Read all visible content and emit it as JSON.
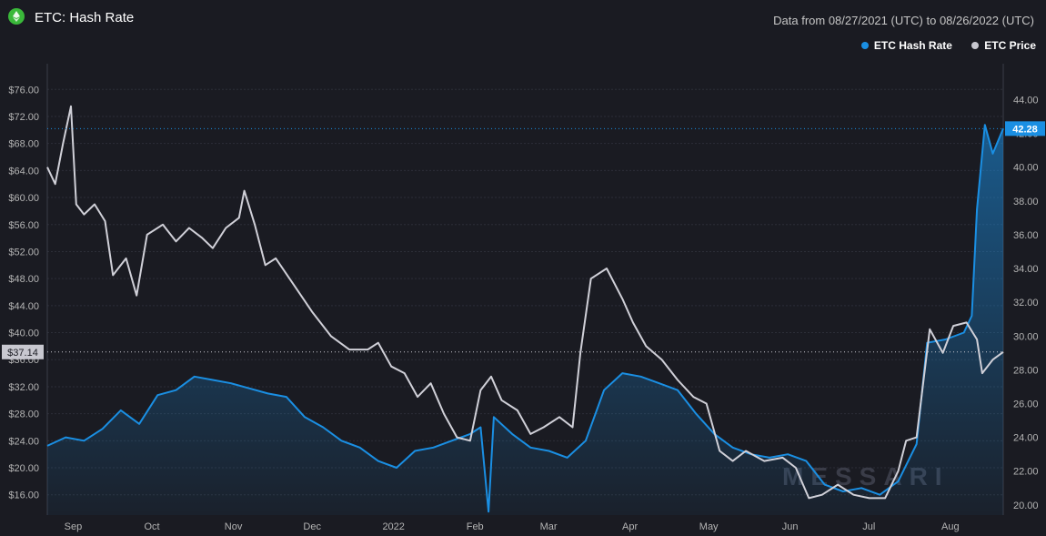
{
  "header": {
    "title": "ETC: Hash Rate",
    "date_range": "Data from 08/27/2021 (UTC) to 08/26/2022 (UTC)"
  },
  "watermark": "MESSARI",
  "colors": {
    "background": "#1a1b22",
    "hash_rate": "#1a8fe3",
    "price": "#d0d0d8",
    "grid": "#2c2e38",
    "logo": "#3ab83a"
  },
  "chart_data": {
    "type": "line",
    "title": "ETC: Hash Rate",
    "legend_position": "top-right",
    "grid": true,
    "x_ticks": [
      "Sep",
      "Oct",
      "Nov",
      "Dec",
      "2022",
      "Feb",
      "Mar",
      "Apr",
      "May",
      "Jun",
      "Jul",
      "Aug"
    ],
    "y_left": {
      "ticks": [
        "$16.00",
        "$20.00",
        "$24.00",
        "$28.00",
        "$32.00",
        "$36.00",
        "$40.00",
        "$44.00",
        "$48.00",
        "$52.00",
        "$56.00",
        "$60.00",
        "$64.00",
        "$68.00",
        "$72.00",
        "$76.00"
      ],
      "range": [
        13,
        79
      ]
    },
    "y_right": {
      "ticks": [
        "20.00",
        "22.00",
        "24.00",
        "26.00",
        "28.00",
        "30.00",
        "32.00",
        "34.00",
        "36.00",
        "38.00",
        "40.00",
        "42.00",
        "44.00"
      ],
      "range": [
        19.4,
        45.8
      ]
    },
    "current_value_labels": {
      "price": "$37.14",
      "hash_rate": "42.28"
    },
    "series": [
      {
        "name": "ETC Hash Rate",
        "axis": "right",
        "points": [
          [
            "2021-08-27",
            23.5
          ],
          [
            "2021-09-03",
            24.0
          ],
          [
            "2021-09-10",
            23.8
          ],
          [
            "2021-09-17",
            24.5
          ],
          [
            "2021-09-24",
            25.6
          ],
          [
            "2021-10-01",
            24.8
          ],
          [
            "2021-10-08",
            26.5
          ],
          [
            "2021-10-15",
            26.8
          ],
          [
            "2021-10-22",
            27.6
          ],
          [
            "2021-10-29",
            27.4
          ],
          [
            "2021-11-05",
            27.2
          ],
          [
            "2021-11-12",
            26.9
          ],
          [
            "2021-11-19",
            26.6
          ],
          [
            "2021-11-26",
            26.4
          ],
          [
            "2021-12-03",
            25.2
          ],
          [
            "2021-12-10",
            24.6
          ],
          [
            "2021-12-17",
            23.8
          ],
          [
            "2021-12-24",
            23.4
          ],
          [
            "2021-12-31",
            22.6
          ],
          [
            "2022-01-07",
            22.2
          ],
          [
            "2022-01-14",
            23.2
          ],
          [
            "2022-01-21",
            23.4
          ],
          [
            "2022-01-28",
            23.8
          ],
          [
            "2022-02-04",
            24.2
          ],
          [
            "2022-02-08",
            24.6
          ],
          [
            "2022-02-11",
            19.6
          ],
          [
            "2022-02-13",
            25.2
          ],
          [
            "2022-02-20",
            24.2
          ],
          [
            "2022-02-27",
            23.4
          ],
          [
            "2022-03-06",
            23.2
          ],
          [
            "2022-03-13",
            22.8
          ],
          [
            "2022-03-20",
            23.8
          ],
          [
            "2022-03-27",
            26.8
          ],
          [
            "2022-04-03",
            27.8
          ],
          [
            "2022-04-10",
            27.6
          ],
          [
            "2022-04-17",
            27.2
          ],
          [
            "2022-04-24",
            26.8
          ],
          [
            "2022-05-01",
            25.4
          ],
          [
            "2022-05-08",
            24.2
          ],
          [
            "2022-05-15",
            23.4
          ],
          [
            "2022-05-22",
            23.0
          ],
          [
            "2022-05-29",
            22.8
          ],
          [
            "2022-06-05",
            23.0
          ],
          [
            "2022-06-12",
            22.6
          ],
          [
            "2022-06-19",
            21.2
          ],
          [
            "2022-06-26",
            20.8
          ],
          [
            "2022-07-03",
            21.0
          ],
          [
            "2022-07-10",
            20.6
          ],
          [
            "2022-07-17",
            21.4
          ],
          [
            "2022-07-24",
            23.6
          ],
          [
            "2022-07-28",
            29.6
          ],
          [
            "2022-08-04",
            29.8
          ],
          [
            "2022-08-11",
            30.2
          ],
          [
            "2022-08-14",
            31.2
          ],
          [
            "2022-08-16",
            37.5
          ],
          [
            "2022-08-19",
            42.5
          ],
          [
            "2022-08-22",
            40.8
          ],
          [
            "2022-08-26",
            42.28
          ]
        ]
      },
      {
        "name": "ETC Price",
        "axis": "left",
        "points": [
          [
            "2021-08-27",
            64.5
          ],
          [
            "2021-08-30",
            62.0
          ],
          [
            "2021-09-02",
            68.0
          ],
          [
            "2021-09-05",
            73.5
          ],
          [
            "2021-09-07",
            59.0
          ],
          [
            "2021-09-10",
            57.5
          ],
          [
            "2021-09-14",
            59.0
          ],
          [
            "2021-09-18",
            56.5
          ],
          [
            "2021-09-21",
            48.5
          ],
          [
            "2021-09-26",
            51.0
          ],
          [
            "2021-09-30",
            45.5
          ],
          [
            "2021-10-04",
            54.5
          ],
          [
            "2021-10-10",
            56.0
          ],
          [
            "2021-10-15",
            53.5
          ],
          [
            "2021-10-20",
            55.5
          ],
          [
            "2021-10-25",
            54.0
          ],
          [
            "2021-10-29",
            52.5
          ],
          [
            "2021-11-03",
            55.5
          ],
          [
            "2021-11-08",
            57.0
          ],
          [
            "2021-11-10",
            61.0
          ],
          [
            "2021-11-14",
            56.0
          ],
          [
            "2021-11-18",
            50.0
          ],
          [
            "2021-11-22",
            51.0
          ],
          [
            "2021-11-29",
            47.0
          ],
          [
            "2021-12-06",
            43.0
          ],
          [
            "2021-12-13",
            39.5
          ],
          [
            "2021-12-20",
            37.5
          ],
          [
            "2021-12-27",
            37.5
          ],
          [
            "2021-12-31",
            38.5
          ],
          [
            "2022-01-05",
            35.0
          ],
          [
            "2022-01-10",
            34.0
          ],
          [
            "2022-01-15",
            30.5
          ],
          [
            "2022-01-20",
            32.5
          ],
          [
            "2022-01-25",
            28.0
          ],
          [
            "2022-01-30",
            24.5
          ],
          [
            "2022-02-04",
            24.0
          ],
          [
            "2022-02-08",
            31.5
          ],
          [
            "2022-02-12",
            33.5
          ],
          [
            "2022-02-16",
            30.0
          ],
          [
            "2022-02-22",
            28.5
          ],
          [
            "2022-02-27",
            25.0
          ],
          [
            "2022-03-04",
            26.0
          ],
          [
            "2022-03-10",
            27.5
          ],
          [
            "2022-03-15",
            26.0
          ],
          [
            "2022-03-18",
            37.0
          ],
          [
            "2022-03-22",
            48.0
          ],
          [
            "2022-03-28",
            49.5
          ],
          [
            "2022-04-03",
            45.0
          ],
          [
            "2022-04-07",
            41.5
          ],
          [
            "2022-04-12",
            38.0
          ],
          [
            "2022-04-18",
            36.0
          ],
          [
            "2022-04-24",
            33.0
          ],
          [
            "2022-04-30",
            30.5
          ],
          [
            "2022-05-05",
            29.5
          ],
          [
            "2022-05-10",
            22.5
          ],
          [
            "2022-05-15",
            21.0
          ],
          [
            "2022-05-20",
            22.5
          ],
          [
            "2022-05-27",
            21.0
          ],
          [
            "2022-06-03",
            21.5
          ],
          [
            "2022-06-08",
            20.0
          ],
          [
            "2022-06-13",
            15.5
          ],
          [
            "2022-06-18",
            16.0
          ],
          [
            "2022-06-24",
            17.5
          ],
          [
            "2022-06-30",
            16.0
          ],
          [
            "2022-07-06",
            15.5
          ],
          [
            "2022-07-12",
            15.5
          ],
          [
            "2022-07-17",
            19.5
          ],
          [
            "2022-07-20",
            24.0
          ],
          [
            "2022-07-24",
            24.5
          ],
          [
            "2022-07-29",
            40.5
          ],
          [
            "2022-08-03",
            37.0
          ],
          [
            "2022-08-07",
            41.0
          ],
          [
            "2022-08-12",
            41.5
          ],
          [
            "2022-08-16",
            39.0
          ],
          [
            "2022-08-18",
            34.0
          ],
          [
            "2022-08-22",
            36.0
          ],
          [
            "2022-08-26",
            37.14
          ]
        ]
      }
    ]
  }
}
